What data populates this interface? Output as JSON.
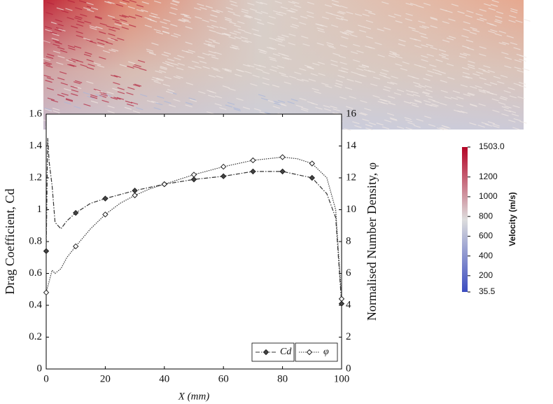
{
  "chart_data": {
    "type": "line",
    "xlabel": "X (mm)",
    "ylabel": "Drag Coefficient, Cd",
    "y2label": "Normalised Number Density, φ",
    "xlim": [
      0,
      100
    ],
    "xticks": [
      0,
      20,
      40,
      60,
      80,
      100
    ],
    "ylim": [
      0,
      1.6
    ],
    "yticks": [
      0,
      0.2,
      0.4,
      0.6,
      0.8,
      1,
      1.2,
      1.4,
      1.6
    ],
    "y2lim": [
      0,
      16
    ],
    "y2ticks": [
      0,
      2,
      4,
      6,
      8,
      10,
      12,
      14,
      16
    ],
    "legend": "lower right",
    "series": [
      {
        "name": "Cd",
        "color": "#333333",
        "linestyle": "dashdot",
        "marker_fill": "#444444",
        "x": [
          0,
          0.5,
          1,
          2,
          3,
          4,
          5,
          7,
          10,
          15,
          20,
          30,
          40,
          50,
          60,
          70,
          80,
          90,
          95,
          98,
          100
        ],
        "values": [
          0.74,
          1.45,
          1.3,
          1.15,
          0.92,
          0.9,
          0.88,
          0.93,
          0.98,
          1.04,
          1.07,
          1.12,
          1.16,
          1.19,
          1.21,
          1.24,
          1.24,
          1.2,
          1.1,
          0.95,
          0.41
        ]
      },
      {
        "name": "φ",
        "color": "#333333",
        "linestyle": "dotted",
        "marker_fill": "#ffffff",
        "axis": "y2",
        "x": [
          0,
          1,
          2,
          3,
          5,
          7,
          10,
          15,
          20,
          25,
          30,
          35,
          40,
          50,
          60,
          70,
          80,
          85,
          90,
          95,
          98,
          100
        ],
        "values": [
          4.8,
          5.5,
          6.2,
          6.0,
          6.3,
          7.0,
          7.7,
          8.8,
          9.7,
          10.4,
          10.9,
          11.3,
          11.6,
          12.2,
          12.7,
          13.1,
          13.3,
          13.2,
          12.9,
          12.0,
          10.0,
          4.4
        ]
      }
    ],
    "colorbar": {
      "label": "Velocity (m/s)",
      "lim": [
        35.5,
        1503
      ],
      "ticks": [
        {
          "value": 1503,
          "label": "1503.0"
        },
        1200,
        1000,
        800,
        600,
        400,
        200,
        35.5
      ],
      "colors": [
        "#3b4cc0",
        "#dddddd",
        "#b40426"
      ]
    }
  }
}
